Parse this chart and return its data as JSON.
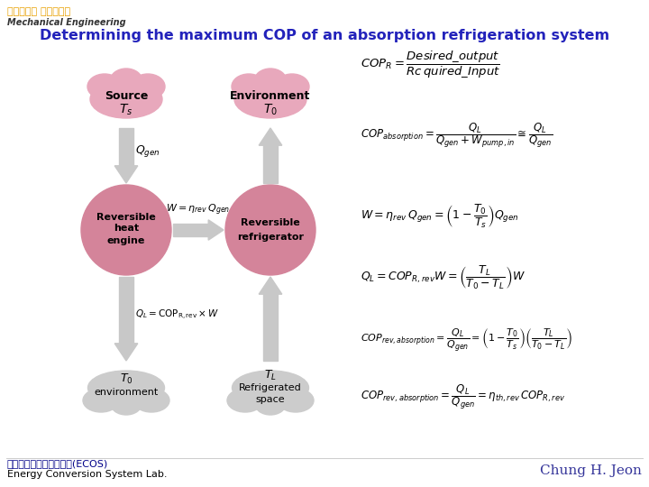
{
  "title": "Determining the maximum COP of an absorption refrigeration system",
  "title_color": "#2222bb",
  "bg_color": "#ffffff",
  "pink_light": "#e8a8bc",
  "pink_mid": "#d4849a",
  "gray_light": "#cccccc",
  "gray_mid": "#b0b0b0",
  "arrow_color": "#b0b0b0",
  "header_text1": "부산대학교 기계공학부",
  "header_text2": "Mechanical Engineering",
  "header_color1": "#e8a000",
  "header_color2": "#444444",
  "footer_left1": "에너지변환시스템연구실(ECOS)",
  "footer_left2": "Energy Conversion System Lab.",
  "footer_right": "Chung H. Jeon",
  "footer_color": "#333399"
}
